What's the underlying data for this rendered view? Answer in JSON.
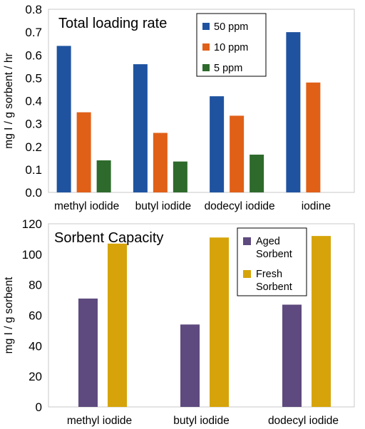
{
  "chart_data": [
    {
      "type": "bar",
      "title": "Total loading rate",
      "ylabel": "mg I / g sorbent / hr",
      "ylim": [
        0,
        0.8
      ],
      "yticks": [
        "0.0",
        "0.1",
        "0.2",
        "0.3",
        "0.4",
        "0.5",
        "0.6",
        "0.7",
        "0.8"
      ],
      "categories": [
        "methyl iodide",
        "butyl iodide",
        "dodecyl iodide",
        "iodine"
      ],
      "legend_position": "top-right",
      "grid": false,
      "series": [
        {
          "name": "50 ppm",
          "color": "#1f53a0",
          "values": [
            0.64,
            0.56,
            0.42,
            0.7
          ]
        },
        {
          "name": "10 ppm",
          "color": "#e06018",
          "values": [
            0.35,
            0.26,
            0.335,
            0.48
          ]
        },
        {
          "name": "5 ppm",
          "color": "#2e6a2c",
          "values": [
            0.14,
            0.135,
            0.165,
            null
          ]
        }
      ]
    },
    {
      "type": "bar",
      "title": "Sorbent Capacity",
      "ylabel": "mg I / g sorbent",
      "ylim": [
        0,
        120
      ],
      "yticks": [
        "0",
        "20",
        "40",
        "60",
        "80",
        "100",
        "120"
      ],
      "categories": [
        "methyl iodide",
        "butyl iodide",
        "dodecyl iodide"
      ],
      "legend_position": "top-right",
      "grid": false,
      "series": [
        {
          "name": "Aged Sorbent",
          "name_lines": [
            "Aged",
            "Sorbent"
          ],
          "color": "#5e4a7e",
          "values": [
            71,
            54,
            67
          ]
        },
        {
          "name": "Fresh Sorbent",
          "name_lines": [
            "Fresh",
            "Sorbent"
          ],
          "color": "#d6a40a",
          "values": [
            107,
            111,
            112
          ]
        }
      ]
    }
  ]
}
